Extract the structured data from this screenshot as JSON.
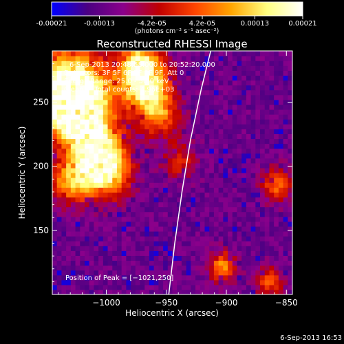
{
  "colorbar": {
    "tick_labels": [
      "-0.00021",
      "-0.00013",
      "-4.2e-05",
      "4.2e-05",
      "0.00013",
      "0.00021"
    ],
    "tick_values": [
      -0.00021,
      -0.00013,
      -4.2e-05,
      4.2e-05,
      0.00013,
      0.00021
    ],
    "range": [
      -0.00021,
      0.00021
    ],
    "unit_label": "(photons cm⁻² s⁻¹ asec⁻²)",
    "colors": [
      "#0000ff",
      "#4b0082",
      "#8b008b",
      "#c00000",
      "#ff4500",
      "#ffa500",
      "#ffff80",
      "#ffffff"
    ]
  },
  "chart_data": {
    "type": "heatmap",
    "title": "Reconstructed RHESSI Image",
    "xlabel": "Heliocentric X (arcsec)",
    "ylabel": "Heliocentric Y (arcsec)",
    "xlim": [
      -1045,
      -845
    ],
    "ylim": [
      100,
      290
    ],
    "xticks": [
      -1000,
      -950,
      -900,
      -850
    ],
    "xtick_labels": [
      "−1000",
      "−950",
      "−900",
      "−850"
    ],
    "yticks": [
      150,
      200,
      250
    ],
    "ytick_labels": [
      "150",
      "200",
      "250"
    ],
    "grid": false,
    "annotations": [
      "6-Sep-2013 20:48:58.000 to 20:52:20.000",
      "Detectors: 3F 5F 6F 7F 8F 9F, Att 0",
      "Energy Range: 25.0 - 50.0 keV",
      "Clean     Total counts: 4.96E+03"
    ],
    "peak_label": "Position of Peak = [−1021,250]",
    "peak_position": [
      -1021,
      250
    ],
    "limb_curve": [
      [
        -948,
        100
      ],
      [
        -943,
        140
      ],
      [
        -937,
        180
      ],
      [
        -930,
        220
      ],
      [
        -921,
        260
      ],
      [
        -913,
        290
      ]
    ],
    "bright_sources": [
      {
        "x": -1030,
        "y": 262,
        "sigma": 22,
        "amp": 1.0
      },
      {
        "x": -1025,
        "y": 245,
        "sigma": 16,
        "amp": 0.9
      },
      {
        "x": -1010,
        "y": 215,
        "sigma": 16,
        "amp": 0.85
      },
      {
        "x": -1000,
        "y": 195,
        "sigma": 14,
        "amp": 0.75
      },
      {
        "x": -1030,
        "y": 188,
        "sigma": 12,
        "amp": 0.6
      },
      {
        "x": -968,
        "y": 262,
        "sigma": 14,
        "amp": 0.85
      },
      {
        "x": -972,
        "y": 280,
        "sigma": 12,
        "amp": 0.7
      },
      {
        "x": -955,
        "y": 240,
        "sigma": 12,
        "amp": 0.5
      },
      {
        "x": -940,
        "y": 205,
        "sigma": 10,
        "amp": 0.35
      },
      {
        "x": -903,
        "y": 122,
        "sigma": 8,
        "amp": 0.6
      },
      {
        "x": -858,
        "y": 186,
        "sigma": 9,
        "amp": 0.5
      },
      {
        "x": -864,
        "y": 110,
        "sigma": 8,
        "amp": 0.45
      }
    ]
  },
  "footer": {
    "timestamp": "6-Sep-2013 16:53"
  }
}
